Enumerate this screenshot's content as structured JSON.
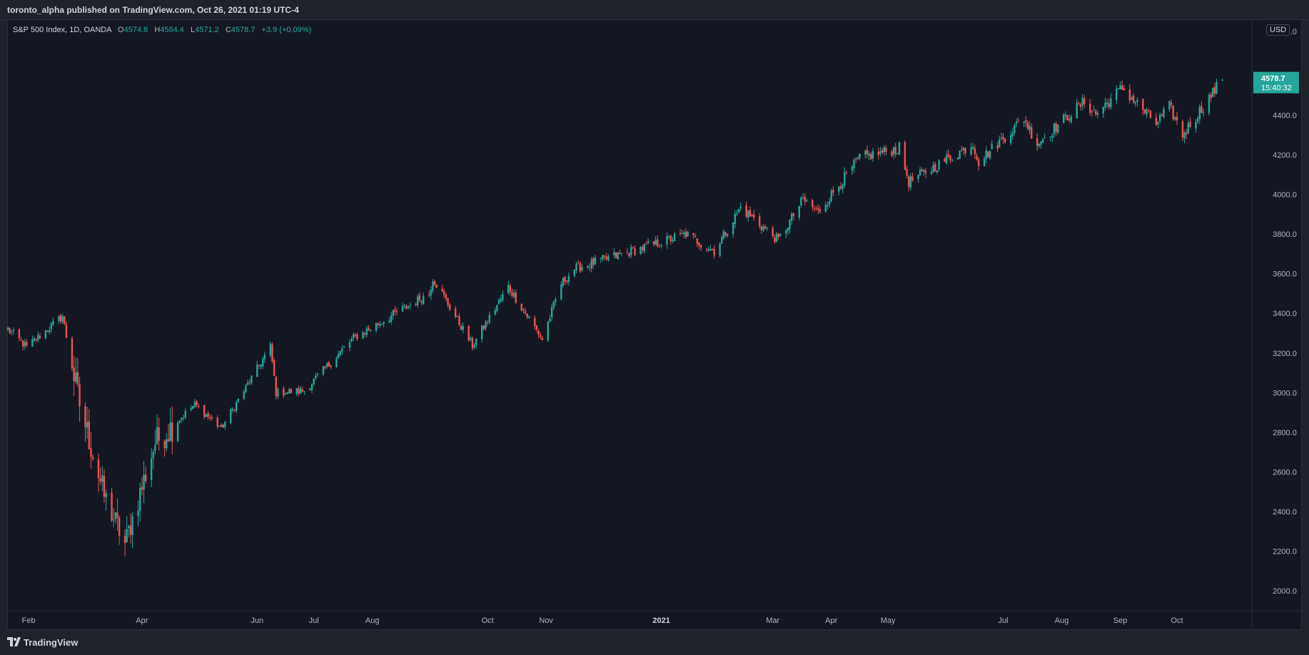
{
  "header": {
    "published": "toronto_alpha published on TradingView.com, Oct 26, 2021 01:19 UTC-4"
  },
  "legend": {
    "symbol": "S&P 500 Index, 1D, OANDA",
    "open_label": "O",
    "open": "4574.8",
    "high_label": "H",
    "high": "4584.4",
    "low_label": "L",
    "low": "4571.2",
    "close_label": "C",
    "close": "4578.7",
    "change": "+3.9 (+0.09%)"
  },
  "price_scale": {
    "currency": "USD",
    "last_price": "4578.7",
    "countdown": "15:40:32"
  },
  "footer": {
    "brand": "TradingView"
  },
  "colors": {
    "up": "#26a69a",
    "down": "#ef5350",
    "background": "#131722",
    "grid": "#2a2e39"
  },
  "chart_data": {
    "type": "candlestick",
    "title": "S&P 500 Index, 1D, OANDA",
    "ylim": [
      1900,
      4880
    ],
    "yticks": [
      2000,
      2200,
      2400,
      2600,
      2800,
      3000,
      3200,
      3400,
      3600,
      3800,
      4000,
      4200,
      4400
    ],
    "ytick_labels": [
      "2000.0",
      "2200.0",
      "2400.0",
      "2600.0",
      "2800.0",
      "3000.0",
      "3200.0",
      "3400.0",
      "3600.0",
      "3800.0",
      "4000.0",
      "4200.0",
      "4400.0"
    ],
    "x_labels": [
      {
        "label": "Feb",
        "date": "2020-02-01",
        "bold": false
      },
      {
        "label": "Apr",
        "date": "2020-04-01",
        "bold": false
      },
      {
        "label": "Jun",
        "date": "2020-06-01",
        "bold": false
      },
      {
        "label": "Jul",
        "date": "2020-07-01",
        "bold": false
      },
      {
        "label": "Aug",
        "date": "2020-08-01",
        "bold": false
      },
      {
        "label": "Oct",
        "date": "2020-10-01",
        "bold": false
      },
      {
        "label": "Nov",
        "date": "2020-11-01",
        "bold": false
      },
      {
        "label": "2021",
        "date": "2021-01-01",
        "bold": true
      },
      {
        "label": "Mar",
        "date": "2021-03-01",
        "bold": false
      },
      {
        "label": "Apr",
        "date": "2021-04-01",
        "bold": false
      },
      {
        "label": "May",
        "date": "2021-05-01",
        "bold": false
      },
      {
        "label": "Jul",
        "date": "2021-07-01",
        "bold": false
      },
      {
        "label": "Aug",
        "date": "2021-08-01",
        "bold": false
      },
      {
        "label": "Sep",
        "date": "2021-09-01",
        "bold": false
      },
      {
        "label": "Oct",
        "date": "2021-10-01",
        "bold": false
      }
    ],
    "close_path": [
      {
        "date": "2020-01-21",
        "close": 3320
      },
      {
        "date": "2020-01-31",
        "close": 3230
      },
      {
        "date": "2020-02-19",
        "close": 3386
      },
      {
        "date": "2020-02-27",
        "close": 2980
      },
      {
        "date": "2020-03-12",
        "close": 2480
      },
      {
        "date": "2020-03-23",
        "close": 2237
      },
      {
        "date": "2020-04-08",
        "close": 2750
      },
      {
        "date": "2020-04-29",
        "close": 2940
      },
      {
        "date": "2020-05-13",
        "close": 2820
      },
      {
        "date": "2020-06-08",
        "close": 3232
      },
      {
        "date": "2020-06-11",
        "close": 3000
      },
      {
        "date": "2020-06-26",
        "close": 3010
      },
      {
        "date": "2020-07-22",
        "close": 3275
      },
      {
        "date": "2020-08-31",
        "close": 3500
      },
      {
        "date": "2020-09-02",
        "close": 3580
      },
      {
        "date": "2020-09-23",
        "close": 3237
      },
      {
        "date": "2020-10-12",
        "close": 3535
      },
      {
        "date": "2020-10-30",
        "close": 3270
      },
      {
        "date": "2020-11-09",
        "close": 3550
      },
      {
        "date": "2020-11-16",
        "close": 3626
      },
      {
        "date": "2020-12-31",
        "close": 3756
      },
      {
        "date": "2021-01-14",
        "close": 3800
      },
      {
        "date": "2021-01-29",
        "close": 3714
      },
      {
        "date": "2021-02-12",
        "close": 3934
      },
      {
        "date": "2021-03-04",
        "close": 3768
      },
      {
        "date": "2021-03-17",
        "close": 3974
      },
      {
        "date": "2021-03-25",
        "close": 3910
      },
      {
        "date": "2021-04-16",
        "close": 4185
      },
      {
        "date": "2021-05-07",
        "close": 4232
      },
      {
        "date": "2021-05-12",
        "close": 4063
      },
      {
        "date": "2021-06-15",
        "close": 4255
      },
      {
        "date": "2021-06-18",
        "close": 4166
      },
      {
        "date": "2021-07-12",
        "close": 4384
      },
      {
        "date": "2021-07-19",
        "close": 4258
      },
      {
        "date": "2021-08-13",
        "close": 4468
      },
      {
        "date": "2021-08-19",
        "close": 4405
      },
      {
        "date": "2021-09-02",
        "close": 4537
      },
      {
        "date": "2021-09-20",
        "close": 4357
      },
      {
        "date": "2021-09-27",
        "close": 4443
      },
      {
        "date": "2021-10-04",
        "close": 4300
      },
      {
        "date": "2021-10-25",
        "close": 4578.7
      }
    ]
  }
}
